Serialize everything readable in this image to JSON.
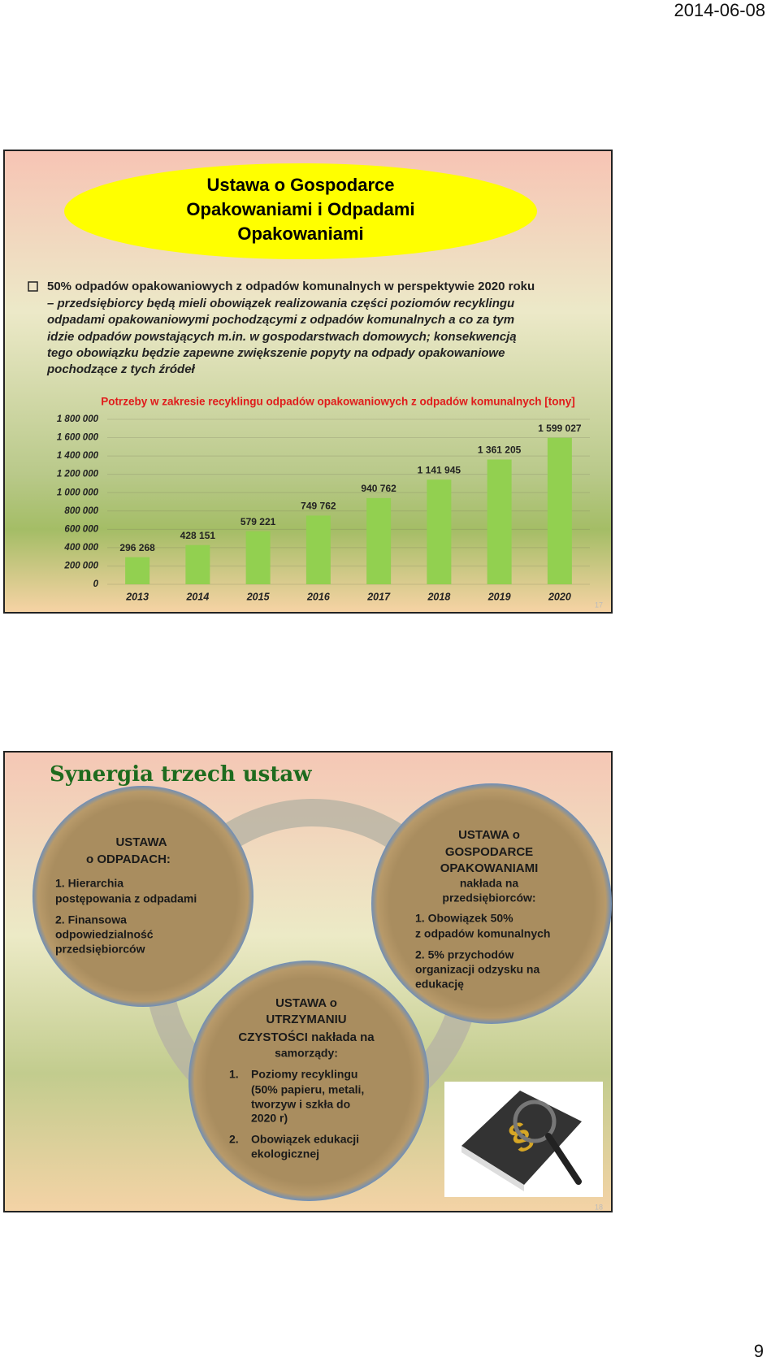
{
  "header": {
    "date": "2014-06-08"
  },
  "slide1": {
    "title": [
      "Ustawa o Gospodarce",
      "Opakowaniami i Odpadami",
      "Opakowaniami"
    ],
    "bullet": [
      "50% odpadów opakowaniowych z odpadów komunalnych w perspektywie 2020 roku",
      "– przedsiębiorcy będą mieli obowiązek realizowania części poziomów recyklingu",
      "odpadami opakowaniowymi pochodzącymi z odpadów komunalnych a co za tym",
      "idzie odpadów powstających m.in. w gospodarstwach domowych; konsekwencją",
      "tego obowiązku będzie zapewne zwiększenie popyty na odpady opakowaniowe",
      "pochodzące z tych źródeł"
    ],
    "chart_data": {
      "type": "bar",
      "title": "Potrzeby w zakresie recyklingu odpadów opakowaniowych z odpadów komunalnych [tony]",
      "categories": [
        "2013",
        "2014",
        "2015",
        "2016",
        "2017",
        "2018",
        "2019",
        "2020"
      ],
      "values": [
        296268,
        428151,
        579221,
        749762,
        940762,
        1141945,
        1361205,
        1599027
      ],
      "value_labels": [
        "296 268",
        "428 151",
        "579 221",
        "749 762",
        "940 762",
        "1 141 945",
        "1 361 205",
        "1 599 027"
      ],
      "color": "#92d050",
      "ylim": [
        0,
        1800000
      ],
      "yticks": [
        0,
        {
          "value": 200000,
          "label": "200 000"
        },
        {
          "value": 400000,
          "label": "400 000"
        },
        {
          "value": 600000,
          "label": "600 000"
        },
        {
          "value": 800000,
          "label": "800 000"
        },
        {
          "value": 1000000,
          "label": "1 000 000"
        },
        {
          "value": 1200000,
          "label": "1 200 000"
        },
        {
          "value": 1400000,
          "label": "1 400 000"
        },
        {
          "value": 1600000,
          "label": "1 600 000"
        },
        {
          "value": 1800000,
          "label": "1 800 000"
        }
      ],
      "grid": true
    },
    "slide_number": "17"
  },
  "slide2": {
    "title": "Synergia trzech ustaw",
    "left": [
      "USTAWA",
      "o ODPADACH:",
      "1. Hierarchia",
      "postępowania z odpadami",
      "2. Finansowa",
      "odpowiedzialność",
      "przedsiębiorców"
    ],
    "right": [
      "USTAWA o",
      "GOSPODARCE",
      "OPAKOWANIAMI",
      "nakłada na",
      "przedsiębiorców:",
      "1. Obowiązek 50%",
      "z odpadów komunalnych",
      "2. 5% przychodów",
      "organizacji odzysku na",
      "edukację"
    ],
    "bottom": [
      "USTAWA o",
      "UTRZYMANIU",
      "CZYSTOŚCI nakłada na",
      "samorządy:",
      "1.",
      "Poziomy recyklingu",
      "(50% papieru, metali,",
      "tworzyw i szkła do",
      "2020 r)",
      "2.",
      "Obowiązek edukacji",
      "ekologicznej"
    ],
    "slide_number": "18"
  },
  "footer": {
    "page_number": "9"
  }
}
